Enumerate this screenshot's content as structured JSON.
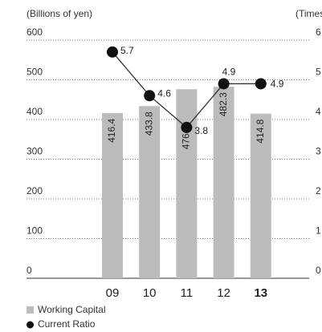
{
  "chart_data": {
    "type": "bar_line",
    "y_label": "(Billions of yen)",
    "y2_label": "(Times)",
    "categories": [
      "09",
      "10",
      "11",
      "12",
      "13"
    ],
    "series": [
      {
        "name": "Working Capital",
        "type": "bar",
        "color": "#bcbcbc",
        "values": [
          416.4,
          433.8,
          476.2,
          482.3,
          414.8
        ]
      },
      {
        "name": "Current Ratio",
        "type": "line",
        "axis": "y2",
        "color": "#111111",
        "values": [
          5.7,
          4.6,
          3.8,
          4.9,
          4.9
        ]
      }
    ],
    "ylim": [
      0,
      600
    ],
    "yticks": [
      0,
      100,
      200,
      300,
      400,
      500,
      600
    ],
    "y2lim": [
      0,
      6
    ],
    "y2ticks": [
      0,
      1,
      2,
      3,
      4,
      5,
      6
    ],
    "grid": true
  }
}
